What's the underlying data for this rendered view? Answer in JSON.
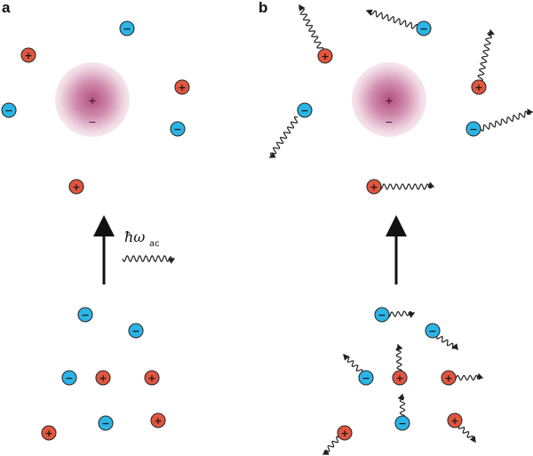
{
  "panels": {
    "a": {
      "label": "a"
    },
    "b": {
      "label": "b"
    }
  },
  "symbols": {
    "positive": "+",
    "negative": "−",
    "photon_main": "ħω",
    "photon_sub": "ac"
  },
  "colors": {
    "positive_fill": "#e2553f",
    "negative_fill": "#2bb4e6",
    "particle_stroke": "#2b2b2b",
    "cloud_inner": "#b65a86",
    "cloud_outer": "#f3dfe9",
    "arrow": "#111111",
    "wave": "#222222"
  }
}
